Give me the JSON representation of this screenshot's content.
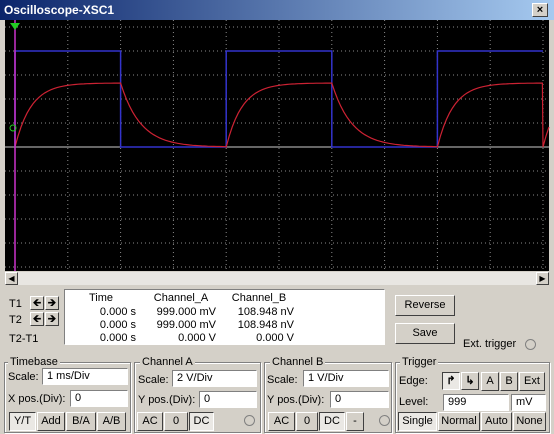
{
  "window": {
    "title": "Oscilloscope-XSC1"
  },
  "readout": {
    "row_labels": [
      "T1",
      "T2",
      "T2-T1"
    ],
    "columns": [
      "Time",
      "Channel_A",
      "Channel_B"
    ],
    "rows": [
      [
        "0.000 s",
        "999.000 mV",
        "108.948 nV"
      ],
      [
        "0.000 s",
        "999.000 mV",
        "108.948 nV"
      ],
      [
        "0.000 s",
        "0.000 V",
        "0.000 V"
      ]
    ]
  },
  "buttons": {
    "reverse": "Reverse",
    "save": "Save"
  },
  "ext_trigger": "Ext. trigger",
  "timebase": {
    "title": "Timebase",
    "scale_label": "Scale:",
    "scale": "1 ms/Div",
    "xpos_label": "X pos.(Div):",
    "xpos": "0",
    "modes": [
      "Y/T",
      "Add",
      "B/A",
      "A/B"
    ]
  },
  "channel_a": {
    "title": "Channel A",
    "scale_label": "Scale:",
    "scale": "2  V/Div",
    "ypos_label": "Y pos.(Div):",
    "ypos": "0",
    "coupling": [
      "AC",
      "0",
      "DC"
    ]
  },
  "channel_b": {
    "title": "Channel B",
    "scale_label": "Scale:",
    "scale": "1  V/Div",
    "ypos_label": "Y pos.(Div):",
    "ypos": "0",
    "coupling": [
      "AC",
      "0",
      "DC",
      "-"
    ]
  },
  "trigger": {
    "title": "Trigger",
    "edge_label": "Edge:",
    "sources": [
      "A",
      "B",
      "Ext"
    ],
    "level_label": "Level:",
    "level": "999",
    "level_unit": "mV",
    "modes": [
      "Single",
      "Normal",
      "Auto",
      "None"
    ]
  }
}
